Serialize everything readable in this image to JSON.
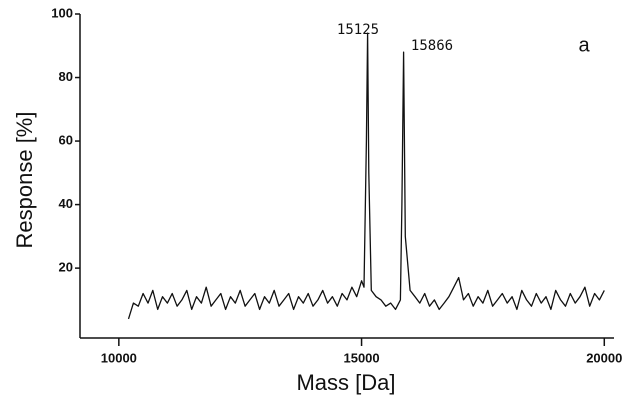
{
  "chart_data": {
    "type": "line",
    "x_label": "Mass [Da]",
    "y_label": "Response [%]",
    "annotations": [
      "15125",
      "15866",
      "a"
    ],
    "xlim": [
      9200,
      20200
    ],
    "ylim": [
      -2,
      100
    ],
    "xticks": [
      10000,
      15000,
      20000
    ],
    "yticks": [
      20,
      40,
      60,
      80,
      100
    ],
    "color": "#111111",
    "x": [
      10200,
      10300,
      10400,
      10500,
      10600,
      10700,
      10800,
      10900,
      11000,
      11100,
      11200,
      11300,
      11400,
      11500,
      11600,
      11700,
      11800,
      11900,
      12000,
      12100,
      12200,
      12300,
      12400,
      12500,
      12600,
      12700,
      12800,
      12900,
      13000,
      13100,
      13200,
      13300,
      13400,
      13500,
      13600,
      13700,
      13800,
      13900,
      14000,
      14100,
      14200,
      14300,
      14400,
      14500,
      14600,
      14700,
      14800,
      14900,
      15000,
      15050,
      15100,
      15125,
      15150,
      15200,
      15300,
      15400,
      15500,
      15600,
      15700,
      15800,
      15830,
      15866,
      15900,
      16000,
      16100,
      16200,
      16300,
      16400,
      16500,
      16600,
      16700,
      16800,
      16900,
      17000,
      17100,
      17200,
      17300,
      17400,
      17500,
      17600,
      17700,
      17800,
      17900,
      18000,
      18100,
      18200,
      18300,
      18400,
      18500,
      18600,
      18700,
      18800,
      18900,
      19000,
      19100,
      19200,
      19300,
      19400,
      19500,
      19600,
      19700,
      19800,
      19900,
      20000
    ],
    "values": [
      4,
      9,
      8,
      12,
      9,
      13,
      7,
      11,
      9,
      12,
      8,
      10,
      13,
      7,
      11,
      9,
      14,
      8,
      10,
      12,
      7,
      11,
      9,
      13,
      8,
      10,
      12,
      7,
      11,
      9,
      13,
      8,
      10,
      12,
      7,
      11,
      9,
      12,
      8,
      10,
      13,
      9,
      11,
      8,
      12,
      10,
      14,
      11,
      16,
      14,
      60,
      94,
      50,
      13,
      11,
      10,
      8,
      9,
      7,
      10,
      40,
      88,
      30,
      13,
      11,
      9,
      12,
      8,
      10,
      7,
      9,
      11,
      14,
      17,
      10,
      12,
      8,
      11,
      9,
      13,
      8,
      10,
      12,
      9,
      11,
      7,
      13,
      10,
      8,
      12,
      9,
      11,
      7,
      13,
      10,
      8,
      12,
      9,
      11,
      14,
      8,
      12,
      10,
      13
    ]
  }
}
